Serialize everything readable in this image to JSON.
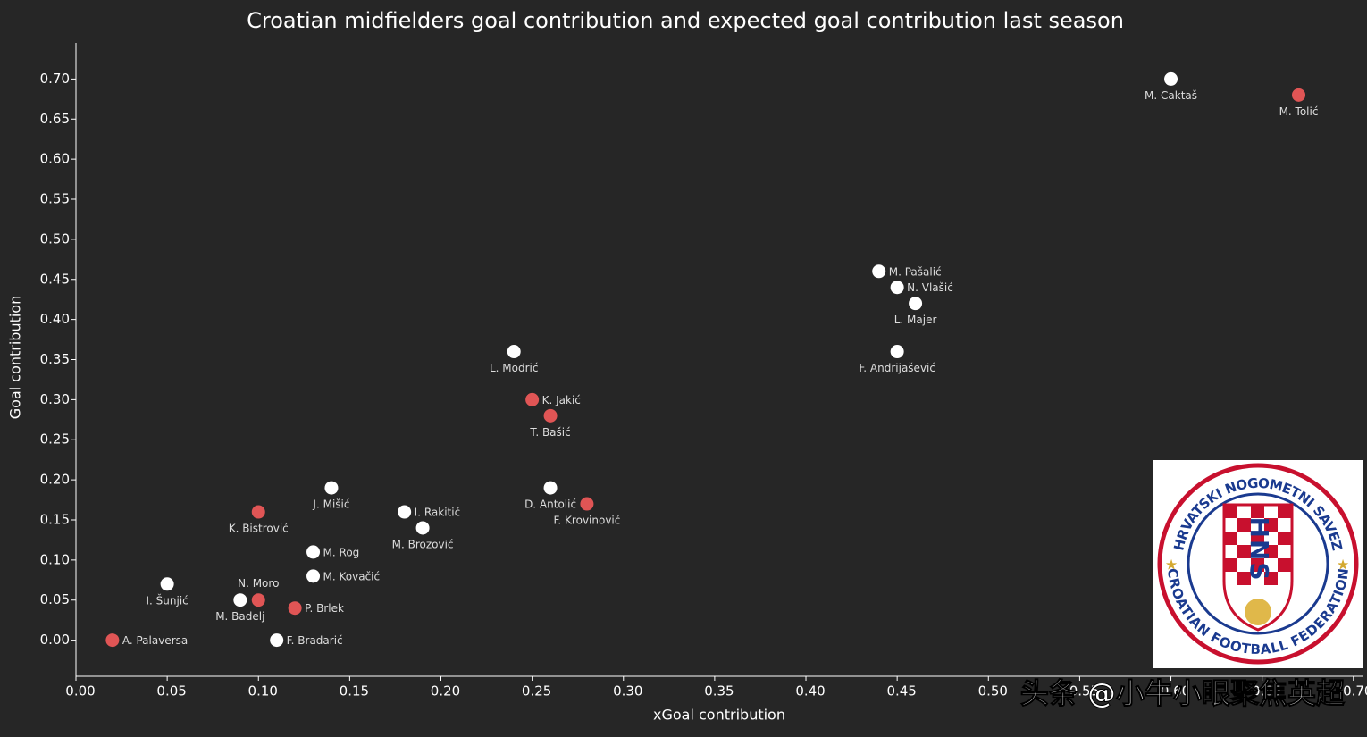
{
  "chart_data": {
    "type": "scatter",
    "title": "Croatian midfielders goal contribution and expected goal contribution last season",
    "x_label": "xGoal contribution",
    "y_label": "Goal contribution",
    "xlim": [
      0,
      0.705
    ],
    "ylim": [
      -0.045,
      0.745
    ],
    "xticks": [
      {
        "value": 0,
        "label": "0.00"
      },
      {
        "value": 0.05,
        "label": "0.05"
      },
      {
        "value": 0.1,
        "label": "0.10"
      },
      {
        "value": 0.15,
        "label": "0.15"
      },
      {
        "value": 0.2,
        "label": "0.20"
      },
      {
        "value": 0.25,
        "label": "0.25"
      },
      {
        "value": 0.3,
        "label": "0.30"
      },
      {
        "value": 0.35,
        "label": "0.35"
      },
      {
        "value": 0.4,
        "label": "0.40"
      },
      {
        "value": 0.45,
        "label": "0.45"
      },
      {
        "value": 0.5,
        "label": "0.50"
      },
      {
        "value": 0.55,
        "label": "0.55"
      },
      {
        "value": 0.6,
        "label": "0.60"
      },
      {
        "value": 0.65,
        "label": "0.65"
      },
      {
        "value": 0.7,
        "label": "0.70"
      }
    ],
    "yticks": [
      {
        "value": 0,
        "label": "0.00"
      },
      {
        "value": 0.05,
        "label": "0.05"
      },
      {
        "value": 0.1,
        "label": "0.10"
      },
      {
        "value": 0.15,
        "label": "0.15"
      },
      {
        "value": 0.2,
        "label": "0.20"
      },
      {
        "value": 0.25,
        "label": "0.25"
      },
      {
        "value": 0.3,
        "label": "0.30"
      },
      {
        "value": 0.35,
        "label": "0.35"
      },
      {
        "value": 0.4,
        "label": "0.40"
      },
      {
        "value": 0.45,
        "label": "0.45"
      },
      {
        "value": 0.5,
        "label": "0.50"
      },
      {
        "value": 0.55,
        "label": "0.55"
      },
      {
        "value": 0.6,
        "label": "0.60"
      },
      {
        "value": 0.65,
        "label": "0.65"
      },
      {
        "value": 0.7,
        "label": "0.70"
      }
    ],
    "points": [
      {
        "name": "M. Caktaš",
        "x": 0.6,
        "y": 0.7,
        "color": "#ffffff"
      },
      {
        "name": "M. Tolić",
        "x": 0.67,
        "y": 0.68,
        "color": "#e05555"
      },
      {
        "name": "M. Pašalić",
        "x": 0.44,
        "y": 0.46,
        "color": "#ffffff"
      },
      {
        "name": "N. Vlašić",
        "x": 0.45,
        "y": 0.44,
        "color": "#ffffff"
      },
      {
        "name": "L. Majer",
        "x": 0.46,
        "y": 0.42,
        "color": "#ffffff"
      },
      {
        "name": "F. Andrijašević",
        "x": 0.45,
        "y": 0.36,
        "color": "#ffffff"
      },
      {
        "name": "L. Modrić",
        "x": 0.24,
        "y": 0.36,
        "color": "#ffffff"
      },
      {
        "name": "K. Jakić",
        "x": 0.25,
        "y": 0.3,
        "color": "#e05555"
      },
      {
        "name": "T. Bašić",
        "x": 0.26,
        "y": 0.28,
        "color": "#e05555"
      },
      {
        "name": "D. Antolić",
        "x": 0.26,
        "y": 0.19,
        "color": "#ffffff"
      },
      {
        "name": "F. Krovinović",
        "x": 0.28,
        "y": 0.17,
        "color": "#e05555"
      },
      {
        "name": "J. Mišić",
        "x": 0.14,
        "y": 0.19,
        "color": "#ffffff"
      },
      {
        "name": "I. Rakitić",
        "x": 0.18,
        "y": 0.16,
        "color": "#ffffff"
      },
      {
        "name": "M. Brozović",
        "x": 0.19,
        "y": 0.14,
        "color": "#ffffff"
      },
      {
        "name": "K. Bistrović",
        "x": 0.1,
        "y": 0.16,
        "color": "#e05555"
      },
      {
        "name": "M. Rog",
        "x": 0.13,
        "y": 0.11,
        "color": "#ffffff"
      },
      {
        "name": "M. Kovačić",
        "x": 0.13,
        "y": 0.08,
        "color": "#ffffff"
      },
      {
        "name": "I. Šunjić",
        "x": 0.05,
        "y": 0.07,
        "color": "#ffffff"
      },
      {
        "name": "N. Moro",
        "x": 0.1,
        "y": 0.05,
        "color": "#e05555"
      },
      {
        "name": "M. Badelj",
        "x": 0.09,
        "y": 0.05,
        "color": "#ffffff"
      },
      {
        "name": "P. Brlek",
        "x": 0.12,
        "y": 0.04,
        "color": "#e05555"
      },
      {
        "name": "F. Bradarić",
        "x": 0.11,
        "y": 0.0,
        "color": "#ffffff"
      },
      {
        "name": "A. Palaversa",
        "x": 0.02,
        "y": 0.0,
        "color": "#e05555"
      }
    ]
  },
  "logo": {
    "top_text": "HRVATSKI NOGOMETNI SAVEZ",
    "bottom_text": "CROATIAN FOOTBALL FEDERATION",
    "initials": "HNS"
  },
  "watermark": "头条 @小牛小眼聚焦英超"
}
